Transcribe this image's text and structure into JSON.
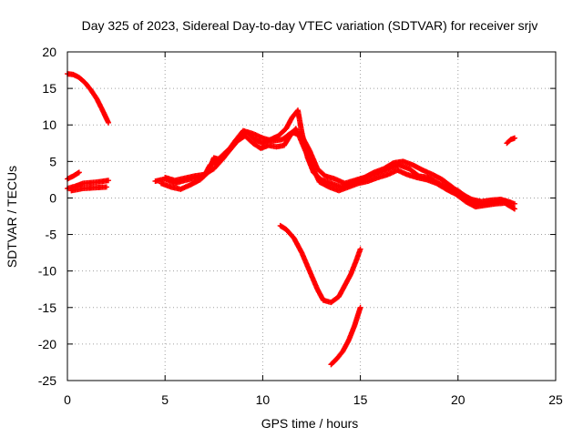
{
  "chart_data": {
    "type": "scatter",
    "title": "Day 325 of 2023, Sidereal Day-to-day VTEC variation (SDTVAR) for receiver srjv",
    "xlabel": "GPS time / hours",
    "ylabel": "SDTVAR / TECUs",
    "xlim": [
      0,
      25
    ],
    "ylim": [
      -25,
      20
    ],
    "xticks": [
      0,
      5,
      10,
      15,
      20,
      25
    ],
    "yticks": [
      -25,
      -20,
      -15,
      -10,
      -5,
      0,
      5,
      10,
      15,
      20
    ],
    "grid": true,
    "marker_color": "#ff0000",
    "series": [
      {
        "name": "arc-early-high",
        "points": [
          [
            0.0,
            17.0
          ],
          [
            0.3,
            16.9
          ],
          [
            0.6,
            16.5
          ],
          [
            0.9,
            15.8
          ],
          [
            1.2,
            14.8
          ],
          [
            1.5,
            13.6
          ],
          [
            1.8,
            12.0
          ],
          [
            2.1,
            10.3
          ]
        ]
      },
      {
        "name": "arc-early-low-a",
        "points": [
          [
            0.0,
            1.3
          ],
          [
            0.4,
            1.6
          ],
          [
            0.8,
            2.0
          ],
          [
            1.2,
            2.1
          ],
          [
            1.6,
            2.2
          ],
          [
            2.1,
            2.4
          ]
        ]
      },
      {
        "name": "arc-early-low-b",
        "points": [
          [
            0.0,
            2.6
          ],
          [
            0.3,
            3.0
          ],
          [
            0.6,
            3.5
          ]
        ]
      },
      {
        "name": "arc-early-low-c",
        "points": [
          [
            0.2,
            1.0
          ],
          [
            0.8,
            1.3
          ],
          [
            1.4,
            1.4
          ],
          [
            2.0,
            1.5
          ]
        ]
      },
      {
        "name": "arc-main-a",
        "points": [
          [
            4.5,
            2.3
          ],
          [
            5.0,
            2.6
          ],
          [
            5.5,
            2.0
          ],
          [
            6.0,
            2.4
          ],
          [
            6.5,
            2.7
          ],
          [
            7.0,
            3.0
          ],
          [
            7.3,
            4.5
          ],
          [
            7.6,
            5.0
          ],
          [
            8.0,
            6.0
          ],
          [
            8.4,
            7.0
          ],
          [
            8.8,
            8.5
          ],
          [
            9.2,
            9.0
          ],
          [
            9.6,
            8.0
          ],
          [
            10.0,
            7.5
          ],
          [
            10.4,
            8.0
          ],
          [
            10.8,
            8.5
          ],
          [
            11.2,
            9.5
          ],
          [
            11.5,
            11.0
          ],
          [
            11.8,
            12.0
          ],
          [
            12.0,
            9.0
          ],
          [
            12.3,
            5.5
          ],
          [
            12.6,
            3.5
          ],
          [
            13.0,
            2.5
          ],
          [
            13.5,
            2.0
          ],
          [
            14.0,
            1.5
          ],
          [
            14.5,
            2.0
          ],
          [
            15.0,
            2.5
          ],
          [
            15.5,
            3.0
          ],
          [
            16.0,
            3.5
          ],
          [
            16.5,
            4.0
          ],
          [
            17.0,
            4.5
          ],
          [
            17.5,
            4.0
          ],
          [
            18.0,
            3.0
          ],
          [
            18.5,
            2.8
          ],
          [
            19.0,
            2.0
          ],
          [
            19.5,
            1.5
          ],
          [
            20.0,
            1.0
          ],
          [
            20.5,
            0.0
          ],
          [
            21.0,
            -0.8
          ],
          [
            21.5,
            -0.8
          ],
          [
            22.0,
            -0.4
          ],
          [
            22.5,
            -0.5
          ],
          [
            22.9,
            -0.8
          ]
        ]
      },
      {
        "name": "arc-main-b",
        "points": [
          [
            4.8,
            2.0
          ],
          [
            5.3,
            1.5
          ],
          [
            5.8,
            1.2
          ],
          [
            6.3,
            1.8
          ],
          [
            6.8,
            2.5
          ],
          [
            7.2,
            3.5
          ],
          [
            7.5,
            5.5
          ],
          [
            7.9,
            5.2
          ],
          [
            8.3,
            6.5
          ],
          [
            8.7,
            7.8
          ],
          [
            9.1,
            8.5
          ],
          [
            9.5,
            7.5
          ],
          [
            9.9,
            6.8
          ],
          [
            10.3,
            7.2
          ],
          [
            10.7,
            7.0
          ],
          [
            11.1,
            7.2
          ],
          [
            11.4,
            8.5
          ],
          [
            11.7,
            9.5
          ],
          [
            12.1,
            7.0
          ],
          [
            12.5,
            4.5
          ],
          [
            12.9,
            2.2
          ],
          [
            13.4,
            1.5
          ],
          [
            13.9,
            1.0
          ],
          [
            14.4,
            1.5
          ],
          [
            14.9,
            2.0
          ],
          [
            15.4,
            2.3
          ],
          [
            15.9,
            2.8
          ],
          [
            16.4,
            3.2
          ],
          [
            16.9,
            3.8
          ],
          [
            17.4,
            3.2
          ],
          [
            17.9,
            2.8
          ],
          [
            18.4,
            2.5
          ],
          [
            18.9,
            2.0
          ],
          [
            19.4,
            1.2
          ],
          [
            19.9,
            0.5
          ],
          [
            20.4,
            -0.5
          ],
          [
            20.9,
            -1.2
          ],
          [
            21.4,
            -1.0
          ],
          [
            21.9,
            -0.8
          ],
          [
            22.4,
            -0.7
          ],
          [
            22.9,
            -1.5
          ]
        ]
      },
      {
        "name": "arc-main-c",
        "points": [
          [
            5.0,
            2.8
          ],
          [
            5.5,
            2.4
          ],
          [
            6.0,
            2.7
          ],
          [
            6.5,
            3.0
          ],
          [
            7.0,
            3.2
          ],
          [
            7.5,
            4.0
          ],
          [
            8.0,
            5.5
          ],
          [
            8.5,
            7.5
          ],
          [
            9.0,
            9.2
          ],
          [
            9.5,
            8.8
          ],
          [
            10.0,
            8.2
          ],
          [
            10.5,
            7.8
          ],
          [
            11.0,
            8.0
          ],
          [
            11.5,
            9.0
          ],
          [
            12.0,
            8.5
          ],
          [
            12.4,
            6.5
          ],
          [
            12.8,
            4.0
          ],
          [
            13.2,
            3.0
          ],
          [
            13.7,
            2.6
          ],
          [
            14.2,
            2.0
          ],
          [
            14.7,
            2.4
          ],
          [
            15.2,
            2.8
          ],
          [
            15.7,
            3.5
          ],
          [
            16.2,
            4.0
          ],
          [
            16.7,
            4.8
          ],
          [
            17.2,
            5.0
          ],
          [
            17.7,
            4.5
          ],
          [
            18.2,
            3.8
          ],
          [
            18.7,
            3.2
          ],
          [
            19.2,
            2.5
          ],
          [
            19.7,
            1.5
          ],
          [
            20.2,
            0.5
          ],
          [
            20.7,
            -0.2
          ],
          [
            21.2,
            -0.5
          ],
          [
            21.7,
            -0.3
          ],
          [
            22.2,
            -0.2
          ],
          [
            22.7,
            -0.6
          ]
        ]
      },
      {
        "name": "arc-late-short",
        "points": [
          [
            22.5,
            7.5
          ],
          [
            22.7,
            8.0
          ],
          [
            22.9,
            8.2
          ]
        ]
      },
      {
        "name": "arc-negative-a",
        "points": [
          [
            10.9,
            -3.8
          ],
          [
            11.2,
            -4.3
          ],
          [
            11.6,
            -5.5
          ],
          [
            12.0,
            -7.5
          ],
          [
            12.4,
            -10.0
          ],
          [
            12.8,
            -12.5
          ],
          [
            13.1,
            -14.0
          ],
          [
            13.5,
            -14.3
          ],
          [
            13.9,
            -13.5
          ],
          [
            14.2,
            -12.0
          ],
          [
            14.5,
            -10.5
          ],
          [
            14.8,
            -8.5
          ],
          [
            15.0,
            -7.0
          ]
        ]
      },
      {
        "name": "arc-negative-b",
        "points": [
          [
            13.5,
            -22.8
          ],
          [
            13.8,
            -22.0
          ],
          [
            14.1,
            -21.0
          ],
          [
            14.4,
            -19.5
          ],
          [
            14.7,
            -17.5
          ],
          [
            15.0,
            -15.0
          ]
        ]
      }
    ]
  }
}
